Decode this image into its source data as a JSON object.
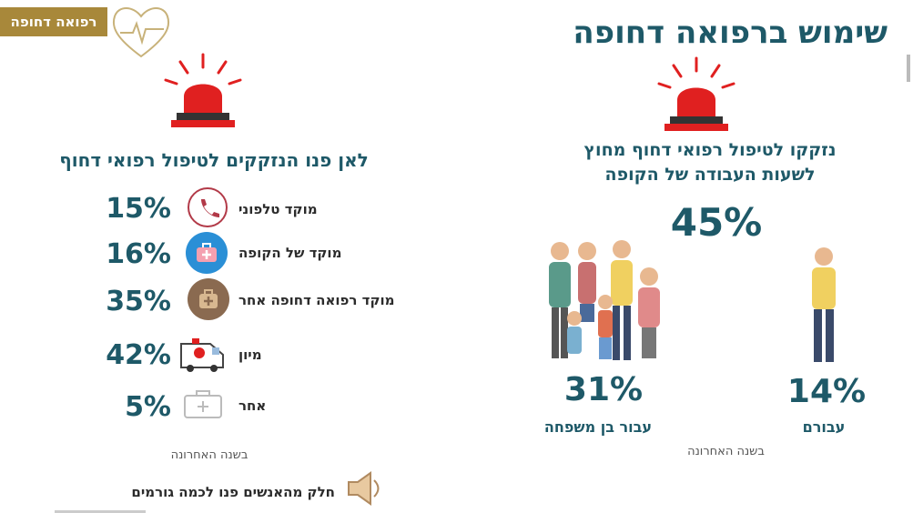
{
  "badge": "רפואה דחופה",
  "title": "שימוש ברפואה דחופה",
  "right_panel": {
    "heading_lines": [
      "נזקקו לטיפול רפואי דחוף מחוץ",
      "לשעות העבודה של הקופה"
    ],
    "total": "45%",
    "family": {
      "value": "31%",
      "label": "עבור בן משפחה"
    },
    "self": {
      "value": "14%",
      "label": "עבורם"
    },
    "note": "בשנה האחרונה"
  },
  "left_panel": {
    "heading": "לאן פנו הנזקקים לטיפול רפואי דחוף",
    "items": [
      {
        "label": "מוקד טלפוני",
        "value": "15%"
      },
      {
        "label": "מוקד של הקופה",
        "value": "16%"
      },
      {
        "label": "מוקד רפואה דחופה אחר",
        "value": "35%"
      },
      {
        "label": "מיון",
        "value": "42%"
      },
      {
        "label": "אחר",
        "value": "5%"
      }
    ],
    "note": "בשנה האחרונה",
    "footnote": "חלק מהאנשים פנו לכמה גורמים"
  }
}
